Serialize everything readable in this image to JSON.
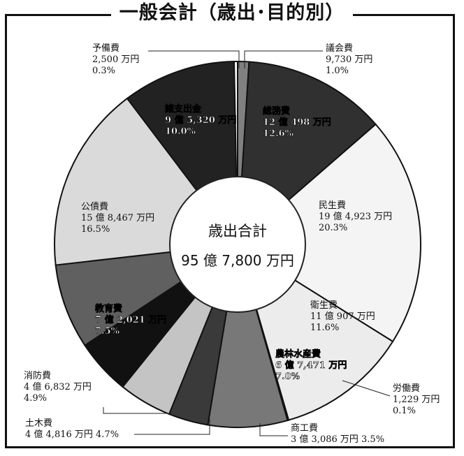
{
  "title": "一般会計（歳出･目的別）",
  "center": {
    "line1": "歳出合計",
    "line2": "95 億 7,800 万円"
  },
  "chart_data": {
    "type": "pie",
    "title": "一般会計（歳出･目的別）",
    "total_label": "歳出合計",
    "total_value": "95 億 7,800 万円",
    "slices": [
      {
        "name": "議会費",
        "amount": "9,730 万円",
        "percent": 1.0,
        "color": "#808080"
      },
      {
        "name": "総務費",
        "amount": "12 億 498 万円",
        "percent": 12.6,
        "color": "#303030"
      },
      {
        "name": "民生費",
        "amount": "19 億 4,923 万円",
        "percent": 20.3,
        "color": "#f4f4f4"
      },
      {
        "name": "衛生費",
        "amount": "11 億 907 万円",
        "percent": 11.6,
        "color": "#ececec"
      },
      {
        "name": "労働費",
        "amount": "1,229 万円",
        "percent": 0.1,
        "color": "#ffffff"
      },
      {
        "name": "農林水産費",
        "amount": "6 億 7,471 万円",
        "percent": 7.0,
        "color": "#787878"
      },
      {
        "name": "商工費",
        "amount": "3 億 3,086 万円",
        "percent": 3.5,
        "color": "#3a3a3a"
      },
      {
        "name": "土木費",
        "amount": "4 億 4,816 万円",
        "percent": 4.7,
        "color": "#c4c4c4"
      },
      {
        "name": "消防費",
        "amount": "4 億 6,832 万円",
        "percent": 4.9,
        "color": "#111111"
      },
      {
        "name": "教育費",
        "amount": "7 億 2,021 万円",
        "percent": 7.5,
        "color": "#606060"
      },
      {
        "name": "公債費",
        "amount": "15 億 8,467 万円",
        "percent": 16.5,
        "color": "#dadada"
      },
      {
        "name": "諸支出金",
        "amount": "9 億 5,320 万円",
        "percent": 10.0,
        "color": "#222222"
      },
      {
        "name": "予備費",
        "amount": "2,500 万円",
        "percent": 0.3,
        "color": "#ffffff"
      }
    ]
  }
}
